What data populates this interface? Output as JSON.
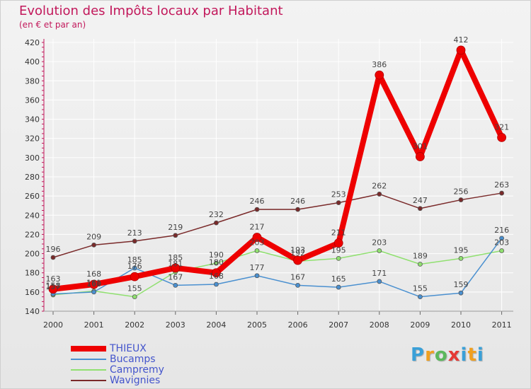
{
  "colors": {
    "title": "#c2185b",
    "THIEUX": "#ee0000",
    "Bucamps": "#4a90d0",
    "Campremy": "#90e070",
    "Wavignies": "#7a2a2a",
    "axis_text": "#333333",
    "grid": "#ffffff"
  },
  "logo": {
    "text": "Proxiti"
  },
  "chart_data": {
    "type": "line",
    "title": "Evolution des Impôts locaux par Habitant",
    "subtitle": "(en € et par an)",
    "xlabel": "",
    "ylabel": "",
    "x": [
      "2000",
      "2001",
      "2002",
      "2003",
      "2004",
      "2005",
      "2006",
      "2007",
      "2008",
      "2009",
      "2010",
      "2011"
    ],
    "ylim": [
      140,
      420
    ],
    "yticks": [
      140,
      160,
      180,
      200,
      220,
      240,
      260,
      280,
      300,
      320,
      340,
      360,
      380,
      400,
      420
    ],
    "grid": true,
    "legend_position": "bottom-left",
    "series": [
      {
        "name": "Wavignies",
        "values": [
          196,
          209,
          213,
          219,
          232,
          246,
          246,
          253,
          262,
          247,
          256,
          263
        ]
      },
      {
        "name": "Campremy",
        "values": [
          157,
          161,
          155,
          181,
          190,
          203,
          192,
          195,
          203,
          189,
          195,
          203
        ]
      },
      {
        "name": "Bucamps",
        "values": [
          158,
          160,
          185,
          167,
          168,
          177,
          167,
          165,
          171,
          155,
          159,
          216
        ]
      },
      {
        "name": "THIEUX",
        "values": [
          163,
          168,
          176,
          185,
          180,
          217,
          193,
          211,
          386,
          301,
          412,
          321
        ]
      }
    ],
    "legend": [
      "THIEUX",
      "Bucamps",
      "Campremy",
      "Wavignies"
    ]
  }
}
